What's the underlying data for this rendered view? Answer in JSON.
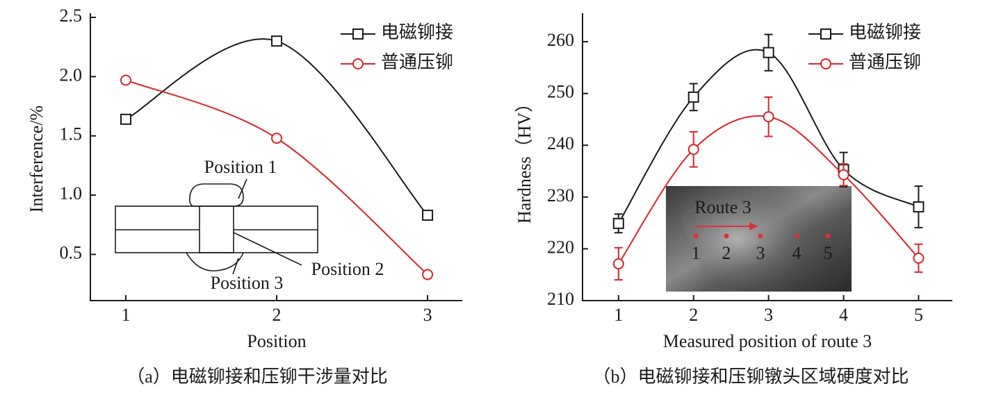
{
  "chart_data": [
    {
      "type": "line",
      "xlabel": "Position",
      "ylabel": "Interference/%",
      "caption": "（a）电磁铆接和压铆干涉量对比",
      "x": [
        1,
        2,
        3
      ],
      "xlim": [
        0.765,
        3.23
      ],
      "xticks": [
        1,
        2,
        3
      ],
      "ylim": [
        0.11,
        2.5
      ],
      "yticks": [
        0.5,
        {
          "value": 1,
          "label": "1.0"
        },
        1.5,
        {
          "value": 2,
          "label": "2.0"
        },
        2.5
      ],
      "legend": "upper right",
      "series": [
        {
          "name": "电磁铆接",
          "color": "#1a1a1a",
          "marker": "square",
          "values": [
            1.64,
            2.3,
            0.83
          ]
        },
        {
          "name": "普通压铆",
          "color": "#d8232a",
          "marker": "circle",
          "values": [
            1.97,
            1.48,
            0.33
          ]
        }
      ],
      "annotations": [
        "Position 1",
        "Position 2",
        "Position 3"
      ]
    },
    {
      "type": "line",
      "xlabel": "Measured position of route 3",
      "ylabel": "Hardness（HV）",
      "caption": "（b）电磁铆接和压铆镦头区域硬度对比",
      "x": [
        1,
        2,
        3,
        4,
        5
      ],
      "xlim": [
        0.52,
        5.45
      ],
      "xticks": [
        1,
        2,
        3,
        4,
        5
      ],
      "ylim": [
        210,
        264.7
      ],
      "yticks": [
        210,
        220,
        230,
        240,
        250,
        260
      ],
      "legend": "upper right",
      "series": [
        {
          "name": "电磁铆接",
          "color": "#1a1a1a",
          "marker": "square",
          "values": [
            224.9,
            249.3,
            257.9,
            235.3,
            228.1
          ],
          "errors": [
            1.8,
            2.6,
            3.5,
            3.3,
            4.0
          ]
        },
        {
          "name": "普通压铆",
          "color": "#d8232a",
          "marker": "circle",
          "values": [
            217.1,
            239.2,
            245.5,
            234.3,
            218.2
          ],
          "errors": [
            3.1,
            3.4,
            3.8,
            2.1,
            2.7
          ]
        }
      ],
      "annotations": [
        "Route 3",
        "1",
        "2",
        "3",
        "4",
        "5"
      ]
    }
  ]
}
